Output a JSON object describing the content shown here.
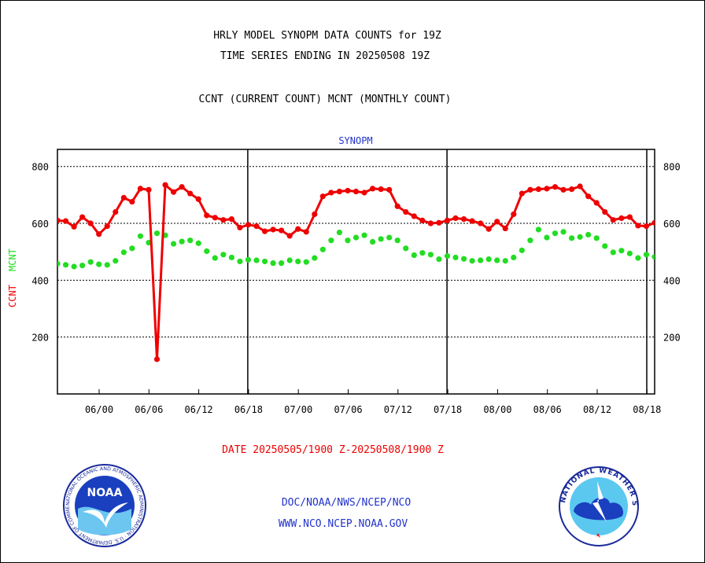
{
  "header": {
    "title_line1": "HRLY MODEL SYNOPM DATA COUNTS for 19Z",
    "title_line2": "TIME SERIES ENDING IN 20250508 19Z",
    "subtitle": "CCNT (CURRENT COUNT) MCNT (MONTHLY COUNT)"
  },
  "footer": {
    "date_range": "DATE 20250505/1900 Z-20250508/1900 Z",
    "link1": "DOC/NOAA/NWS/NCEP/NCO",
    "link2": "WWW.NCO.NCEP.NOAA.GOV"
  },
  "logos": {
    "noaa_text": "NOAA",
    "noaa_ring_text": "NATIONAL OCEANIC AND ATMOSPHERIC ADMINISTRATION · U.S. DEPARTMENT OF COMMERCE ·",
    "nws_ring_text": "NATIONAL WEATHER SERVICE"
  },
  "colors": {
    "ccnt": "#ee0000",
    "mcnt": "#22dd22",
    "plot_title": "#2233cc",
    "links": "#2233cc"
  },
  "chart_data": {
    "type": "line",
    "title": "SYNOPM",
    "ylabel_ccnt": "CCNT",
    "ylabel_mcnt": "MCNT",
    "ylim": [
      0,
      860
    ],
    "yticks": [
      200,
      400,
      600,
      800
    ],
    "grid": true,
    "x_tick_labels": [
      "06/00",
      "06/06",
      "06/12",
      "06/18",
      "07/00",
      "07/06",
      "07/12",
      "07/18",
      "08/00",
      "08/06",
      "08/12",
      "08/18"
    ],
    "day_separator_labels": [
      "06/18",
      "07/18",
      "08/18"
    ],
    "series": [
      {
        "name": "CCNT",
        "color": "#ee0000",
        "values": [
          610,
          608,
          588,
          622,
          600,
          562,
          590,
          640,
          690,
          676,
          722,
          718,
          122,
          735,
          710,
          728,
          705,
          685,
          628,
          620,
          612,
          615,
          585,
          595,
          590,
          572,
          578,
          575,
          556,
          580,
          570,
          632,
          695,
          708,
          712,
          715,
          712,
          708,
          722,
          720,
          718,
          660,
          640,
          625,
          610,
          600,
          602,
          610,
          618,
          615,
          608,
          600,
          580,
          606,
          582,
          632,
          705,
          718,
          720,
          722,
          728,
          718,
          720,
          730,
          695,
          672,
          640,
          612,
          618,
          622,
          592,
          590,
          602
        ]
      },
      {
        "name": "MCNT",
        "color": "#22dd22",
        "values": [
          458,
          454,
          448,
          452,
          464,
          456,
          454,
          468,
          498,
          512,
          555,
          532,
          565,
          558,
          528,
          536,
          540,
          530,
          502,
          478,
          490,
          480,
          466,
          472,
          470,
          466,
          460,
          460,
          470,
          466,
          464,
          478,
          508,
          540,
          568,
          540,
          550,
          558,
          535,
          545,
          550,
          540,
          512,
          488,
          496,
          490,
          474,
          485,
          480,
          475,
          468,
          470,
          474,
          470,
          468,
          480,
          505,
          540,
          578,
          550,
          565,
          570,
          548,
          552,
          560,
          548,
          520,
          498,
          504,
          494,
          478,
          490,
          482
        ]
      }
    ]
  }
}
